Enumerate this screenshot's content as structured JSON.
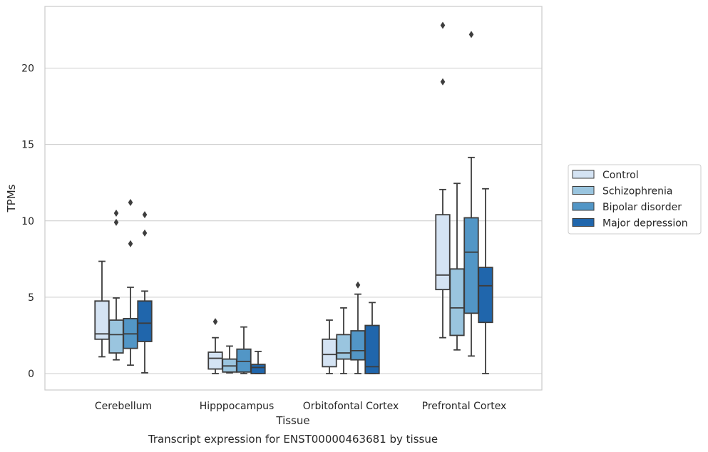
{
  "chart_data": {
    "type": "box",
    "xlabel": "Tissue",
    "ylabel": "TPMs",
    "caption": "Transcript expression for ENST00000463681 by tissue",
    "ylim": [
      -1.1,
      24.2
    ],
    "yticks": [
      0,
      5,
      10,
      15,
      20
    ],
    "ytick_labels": [
      "0",
      "5",
      "10",
      "15",
      "20"
    ],
    "grid": true,
    "legend_position": "right",
    "categories": [
      "Cerebellum",
      "Hipppocampus",
      "Orbitofontal Cortex",
      "Prefrontal Cortex"
    ],
    "series": [
      {
        "name": "Control",
        "color": "#d4e3f3",
        "boxes": [
          {
            "whislo": 1.1,
            "q1": 2.25,
            "med": 2.6,
            "q3": 4.75,
            "whishi": 7.35,
            "fliers": []
          },
          {
            "whislo": 0.0,
            "q1": 0.3,
            "med": 1.0,
            "q3": 1.4,
            "whishi": 2.35,
            "fliers": [
              3.4
            ]
          },
          {
            "whislo": 0.0,
            "q1": 0.45,
            "med": 1.25,
            "q3": 2.25,
            "whishi": 3.5,
            "fliers": []
          },
          {
            "whislo": 2.35,
            "q1": 5.5,
            "med": 6.45,
            "q3": 10.4,
            "whishi": 12.05,
            "fliers": [
              19.1,
              22.8
            ]
          }
        ]
      },
      {
        "name": "Schizophrenia",
        "color": "#9ac5df",
        "boxes": [
          {
            "whislo": 0.9,
            "q1": 1.35,
            "med": 2.55,
            "q3": 3.5,
            "whishi": 4.95,
            "fliers": [
              9.9,
              10.5
            ]
          },
          {
            "whislo": 0.05,
            "q1": 0.1,
            "med": 0.5,
            "q3": 0.95,
            "whishi": 1.8,
            "fliers": []
          },
          {
            "whislo": 0.0,
            "q1": 0.95,
            "med": 1.35,
            "q3": 2.55,
            "whishi": 4.3,
            "fliers": []
          },
          {
            "whislo": 1.55,
            "q1": 2.5,
            "med": 4.3,
            "q3": 6.85,
            "whishi": 12.45,
            "fliers": []
          }
        ]
      },
      {
        "name": "Bipolar disorder",
        "color": "#5296c6",
        "boxes": [
          {
            "whislo": 0.55,
            "q1": 1.65,
            "med": 2.6,
            "q3": 3.6,
            "whishi": 5.65,
            "fliers": [
              8.5,
              11.2
            ]
          },
          {
            "whislo": 0.0,
            "q1": 0.1,
            "med": 0.8,
            "q3": 1.6,
            "whishi": 3.05,
            "fliers": []
          },
          {
            "whislo": 0.0,
            "q1": 0.9,
            "med": 1.5,
            "q3": 2.8,
            "whishi": 5.2,
            "fliers": [
              5.8
            ]
          },
          {
            "whislo": 1.15,
            "q1": 3.95,
            "med": 7.95,
            "q3": 10.2,
            "whishi": 14.15,
            "fliers": [
              22.2
            ]
          }
        ]
      },
      {
        "name": "Major depression",
        "color": "#2066ac",
        "boxes": [
          {
            "whislo": 0.05,
            "q1": 2.1,
            "med": 3.3,
            "q3": 4.75,
            "whishi": 5.4,
            "fliers": [
              9.2,
              10.4
            ]
          },
          {
            "whislo": 0.0,
            "q1": 0.0,
            "med": 0.4,
            "q3": 0.6,
            "whishi": 1.45,
            "fliers": []
          },
          {
            "whislo": 0.0,
            "q1": 0.0,
            "med": 0.45,
            "q3": 3.15,
            "whishi": 4.65,
            "fliers": []
          },
          {
            "whislo": 0.0,
            "q1": 3.35,
            "med": 5.75,
            "q3": 6.95,
            "whishi": 12.1,
            "fliers": []
          }
        ]
      }
    ]
  }
}
